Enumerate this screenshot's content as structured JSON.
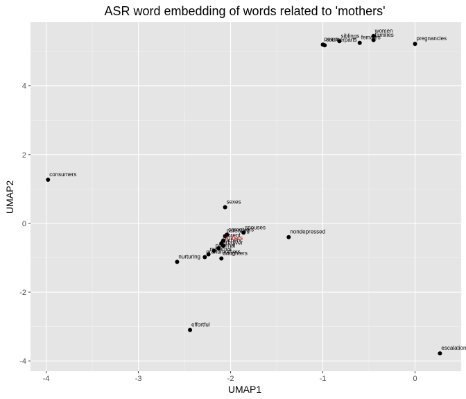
{
  "chart_data": {
    "type": "scatter",
    "title": "ASR word embedding of words related to 'mothers'",
    "xlabel": "UMAP1",
    "ylabel": "UMAP2",
    "xlim": [
      -4.17,
      0.5
    ],
    "ylim": [
      -4.3,
      5.85
    ],
    "xticks": [
      -4,
      -3,
      -2,
      -1,
      0
    ],
    "yticks": [
      -4,
      -2,
      0,
      2,
      4
    ],
    "grid": true,
    "colors": {
      "panel": "#e5e5e5",
      "grid_major": "#ffffff",
      "grid_minor": "#f2f2f2",
      "point": "#000000",
      "text": "#000000",
      "highlight": "#cc0000",
      "tick_text": "#4d4d4d"
    },
    "points": [
      {
        "label": "women",
        "x": -0.45,
        "y": 5.45
      },
      {
        "label": "families",
        "x": -0.45,
        "y": 5.33
      },
      {
        "label": "siblings",
        "x": -0.82,
        "y": 5.3
      },
      {
        "label": "females",
        "x": -0.6,
        "y": 5.25
      },
      {
        "label": "peers",
        "x": -1.0,
        "y": 5.2
      },
      {
        "label": "counterparts",
        "x": -0.98,
        "y": 5.18
      },
      {
        "label": "pregnancies",
        "x": 0.0,
        "y": 5.22
      },
      {
        "label": "consumers",
        "x": -3.98,
        "y": 1.27
      },
      {
        "label": "sexes",
        "x": -2.06,
        "y": 0.47
      },
      {
        "label": "spouses",
        "x": -1.86,
        "y": -0.27
      },
      {
        "label": "caregivers",
        "x": -2.04,
        "y": -0.33
      },
      {
        "label": "parenting",
        "x": -2.06,
        "y": -0.37
      },
      {
        "label": "parent",
        "x": -2.08,
        "y": -0.5
      },
      {
        "label": "mothers",
        "x": -2.1,
        "y": -0.58,
        "highlight": true
      },
      {
        "label": "fathers",
        "x": -2.08,
        "y": -0.65
      },
      {
        "label": "caregiver",
        "x": -2.13,
        "y": -0.72
      },
      {
        "label": "paternal",
        "x": -2.18,
        "y": -0.8
      },
      {
        "label": "maternal",
        "x": -2.24,
        "y": -0.9
      },
      {
        "label": "grandmothers",
        "x": -2.28,
        "y": -0.98
      },
      {
        "label": "daughters",
        "x": -2.1,
        "y": -1.02
      },
      {
        "label": "nurturing",
        "x": -2.58,
        "y": -1.12
      },
      {
        "label": "nondepressed",
        "x": -1.37,
        "y": -0.4
      },
      {
        "label": "effortful",
        "x": -2.44,
        "y": -3.1
      },
      {
        "label": "escalations",
        "x": 0.27,
        "y": -3.78
      }
    ]
  }
}
